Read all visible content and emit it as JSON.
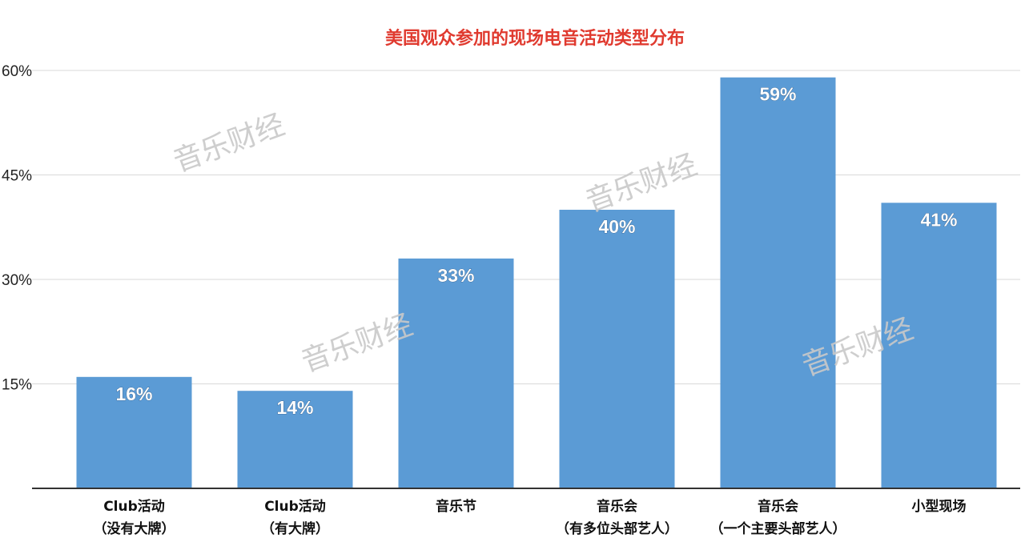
{
  "chart_data": {
    "type": "bar",
    "title": "美国观众参加的现场电音活动类型分布",
    "categories": [
      [
        "Club活动",
        "（没有大牌）"
      ],
      [
        "Club活动",
        "（有大牌）"
      ],
      [
        "音乐节"
      ],
      [
        "音乐会",
        "（有多位头部艺人）"
      ],
      [
        "音乐会",
        "（一个主要头部艺人）"
      ],
      [
        "小型现场"
      ]
    ],
    "values": [
      16,
      14,
      33,
      40,
      59,
      41
    ],
    "value_labels": [
      "16%",
      "14%",
      "33%",
      "40%",
      "59%",
      "41%"
    ],
    "ylim": [
      0,
      60
    ],
    "yticks": [
      15,
      30,
      45,
      60
    ],
    "ytick_labels": [
      "15%",
      "30%",
      "45%",
      "60%"
    ],
    "xlabel": "",
    "ylabel": "",
    "grid": true,
    "legend": "none",
    "colors": {
      "bar": "#5b9bd5",
      "title": "#e03a2f",
      "grid": "#d9d9d9",
      "axis": "#333333"
    }
  },
  "watermark": "音乐财经"
}
